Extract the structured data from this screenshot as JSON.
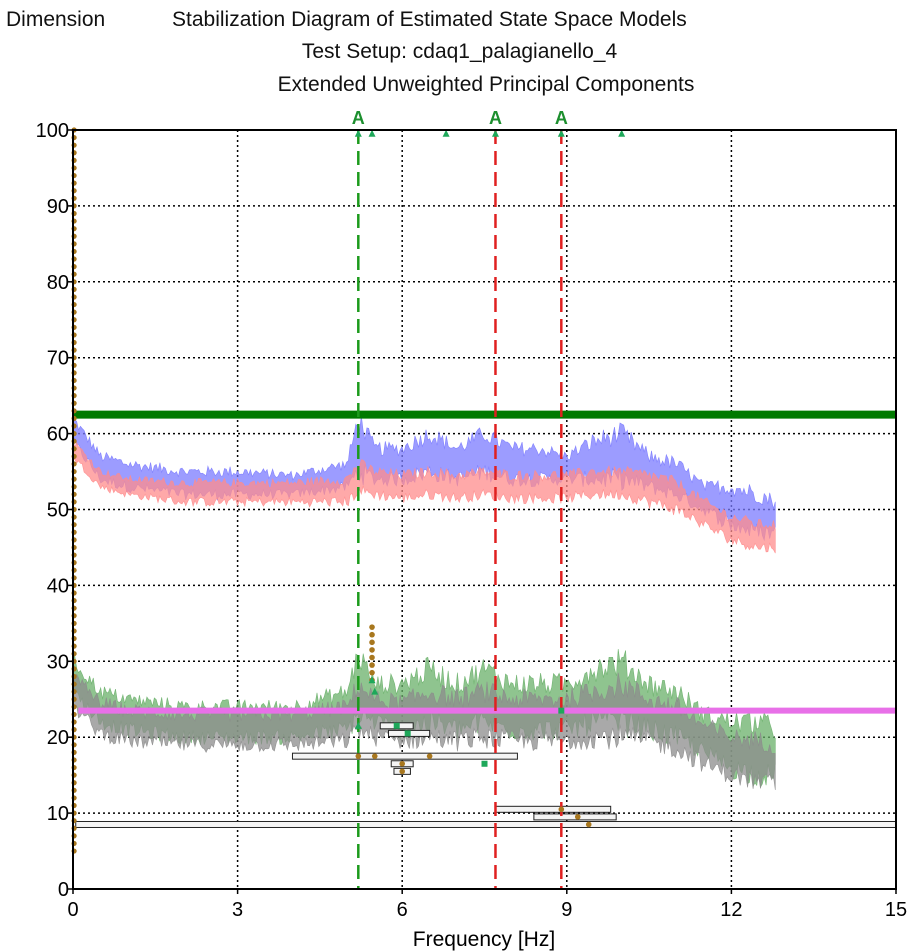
{
  "header": {
    "dimension_label": "Dimension",
    "title": "Stabilization Diagram of Estimated State Space Models",
    "subtitle": "Test Setup: cdaq1_palagianello_4",
    "method": "Extended Unweighted Principal Components"
  },
  "chart_data": {
    "type": "scatter",
    "xlabel": "Frequency [Hz]",
    "ylabel": "Dimension",
    "xlim": [
      0,
      15
    ],
    "ylim": [
      0,
      100
    ],
    "xticks": [
      0,
      3,
      6,
      9,
      12,
      15
    ],
    "yticks": [
      0,
      10,
      20,
      30,
      40,
      50,
      60,
      70,
      80,
      90,
      100
    ],
    "grid": true,
    "colors": {
      "green_line": "#007a00",
      "magenta_line": "#e870e8",
      "blue_band": "#7b7bff",
      "red_band": "#ff8c8c",
      "green_band": "#6ab06a",
      "gray_band": "#8c8c8c",
      "marker_green": "#1ea85a",
      "marker_brown": "#a8771e",
      "mode_green": "#1c9a1c",
      "mode_red": "#e02020"
    },
    "horizontal_lines": [
      {
        "y": 62.5,
        "color": "#007a00"
      },
      {
        "y": 23.5,
        "x_start": 0.1,
        "color": "#e870e8"
      }
    ],
    "mode_lines": [
      {
        "x": 5.2,
        "label": "A",
        "color": "#1c9a1c"
      },
      {
        "x": 7.7,
        "label": "A",
        "color": "#e02020"
      },
      {
        "x": 8.9,
        "label": "A",
        "color": "#e02020"
      }
    ],
    "upper_bands": [
      {
        "color": "#7b7bff",
        "x": [
          0,
          0.5,
          1,
          2,
          3,
          4,
          5,
          5.2,
          5.5,
          6,
          6.5,
          7,
          7.5,
          8,
          8.5,
          9,
          9.5,
          10,
          10.5,
          11,
          11.5,
          12,
          12.5,
          12.8
        ],
        "upper": [
          62,
          57,
          56,
          55,
          55,
          54.5,
          56,
          62,
          58,
          58,
          60,
          58,
          60,
          58,
          58,
          57,
          59,
          60,
          57,
          56,
          53,
          53,
          52,
          51
        ],
        "lower": [
          59,
          54,
          53,
          52,
          52,
          52,
          53,
          55,
          54,
          54,
          55,
          54,
          55,
          54,
          54,
          54,
          54,
          54,
          53,
          52,
          50,
          48,
          47,
          47
        ]
      },
      {
        "color": "#ff8c8c",
        "x": [
          0,
          0.5,
          1,
          2,
          3,
          4,
          5,
          5.2,
          5.5,
          6,
          6.5,
          7,
          7.5,
          8,
          8.5,
          9,
          9.5,
          10,
          10.5,
          11,
          11.5,
          12,
          12.5,
          12.8
        ],
        "upper": [
          59,
          55,
          54,
          53.5,
          53.5,
          53.5,
          54,
          56,
          55,
          54.5,
          55,
          54.5,
          55,
          54.5,
          54.5,
          54.5,
          55,
          55,
          54.5,
          53.5,
          51,
          49,
          48,
          48
        ],
        "lower": [
          57,
          53,
          52,
          51,
          51,
          51,
          51,
          52.5,
          52,
          51.5,
          52,
          51.5,
          52,
          51.5,
          51.5,
          51.5,
          52,
          52,
          51,
          50,
          48,
          46,
          45,
          45
        ]
      }
    ],
    "lower_bands": [
      {
        "color": "#6ab06a",
        "x": [
          0,
          0.5,
          1,
          2,
          3,
          4,
          5,
          5.2,
          5.5,
          6,
          6.5,
          7,
          7.5,
          8,
          8.5,
          9,
          9.5,
          10,
          10.5,
          11,
          11.5,
          12,
          12.5,
          12.8
        ],
        "upper": [
          30,
          26,
          25,
          24,
          24,
          24,
          26,
          31,
          27,
          27,
          29,
          27,
          29,
          27,
          27,
          27,
          29,
          30,
          27,
          26,
          23,
          22,
          22,
          21
        ],
        "lower": [
          26,
          22,
          21,
          20,
          20,
          20,
          21,
          23,
          22,
          21,
          22,
          21,
          22,
          21,
          21,
          21,
          22,
          22,
          21,
          20,
          18,
          16,
          15,
          15
        ]
      },
      {
        "color": "#8c8c8c",
        "x": [
          0,
          0.5,
          1,
          2,
          3,
          4,
          5,
          5.2,
          5.5,
          6,
          6.5,
          7,
          7.5,
          8,
          8.5,
          9,
          9.5,
          10,
          10.5,
          11,
          11.5,
          12,
          12.5,
          12.8
        ],
        "upper": [
          28,
          24.5,
          23.5,
          23,
          23,
          23,
          24,
          27,
          25,
          24.5,
          26,
          25,
          26,
          25,
          25,
          25,
          26,
          27,
          25,
          24,
          21.5,
          20,
          19.5,
          19
        ],
        "lower": [
          24,
          20.5,
          19.5,
          19,
          19,
          19,
          19.5,
          21,
          20,
          19.5,
          20,
          19.5,
          20,
          19.5,
          19.5,
          19.5,
          20,
          20,
          19.5,
          18.5,
          16.5,
          15,
          14,
          14
        ]
      }
    ],
    "brown_dots_left": {
      "x": 0.02,
      "y_from": 5,
      "y_to": 100,
      "step": 1
    },
    "brown_dots_col": {
      "x": 5.45,
      "y": [
        27.5,
        28.5,
        29.5,
        30.5,
        31.5,
        32.5,
        33.5,
        34.5
      ]
    },
    "green_markers": [
      {
        "x": 5.2,
        "y": 99.5,
        "shape": "triangle"
      },
      {
        "x": 5.45,
        "y": 99.5,
        "shape": "triangle"
      },
      {
        "x": 6.8,
        "y": 99.5,
        "shape": "triangle"
      },
      {
        "x": 7.7,
        "y": 99.5,
        "shape": "triangle"
      },
      {
        "x": 8.9,
        "y": 99.5,
        "shape": "triangle"
      },
      {
        "x": 10.0,
        "y": 99.5,
        "shape": "triangle"
      },
      {
        "x": 5.45,
        "y": 27.5,
        "shape": "triangle"
      },
      {
        "x": 5.5,
        "y": 26.0,
        "shape": "triangle"
      },
      {
        "x": 5.2,
        "y": 21.5,
        "shape": "triangle"
      },
      {
        "x": 5.9,
        "y": 21.5,
        "shape": "square"
      },
      {
        "x": 6.1,
        "y": 20.5,
        "shape": "square"
      },
      {
        "x": 7.5,
        "y": 16.5,
        "shape": "square"
      },
      {
        "x": 8.9,
        "y": 23.5,
        "shape": "square"
      }
    ],
    "brown_markers": [
      {
        "x": 5.2,
        "y": 17.5
      },
      {
        "x": 5.5,
        "y": 17.5
      },
      {
        "x": 6.5,
        "y": 17.5
      },
      {
        "x": 6.0,
        "y": 16.5
      },
      {
        "x": 6.0,
        "y": 15.5
      },
      {
        "x": 8.9,
        "y": 10.5
      },
      {
        "x": 9.2,
        "y": 9.5
      },
      {
        "x": 9.4,
        "y": 8.5
      }
    ],
    "boxes": [
      {
        "x1": 5.6,
        "x2": 6.2,
        "y": 21.5
      },
      {
        "x1": 5.75,
        "x2": 6.5,
        "y": 20.5
      },
      {
        "x1": 4.0,
        "x2": 8.1,
        "y": 17.5
      },
      {
        "x1": 5.8,
        "x2": 6.2,
        "y": 16.5
      },
      {
        "x1": 5.85,
        "x2": 6.15,
        "y": 15.5
      },
      {
        "x1": 7.7,
        "x2": 9.8,
        "y": 10.5
      },
      {
        "x1": 8.4,
        "x2": 9.9,
        "y": 9.5
      },
      {
        "x1": 0.05,
        "x2": 15,
        "y": 8.5
      }
    ]
  }
}
